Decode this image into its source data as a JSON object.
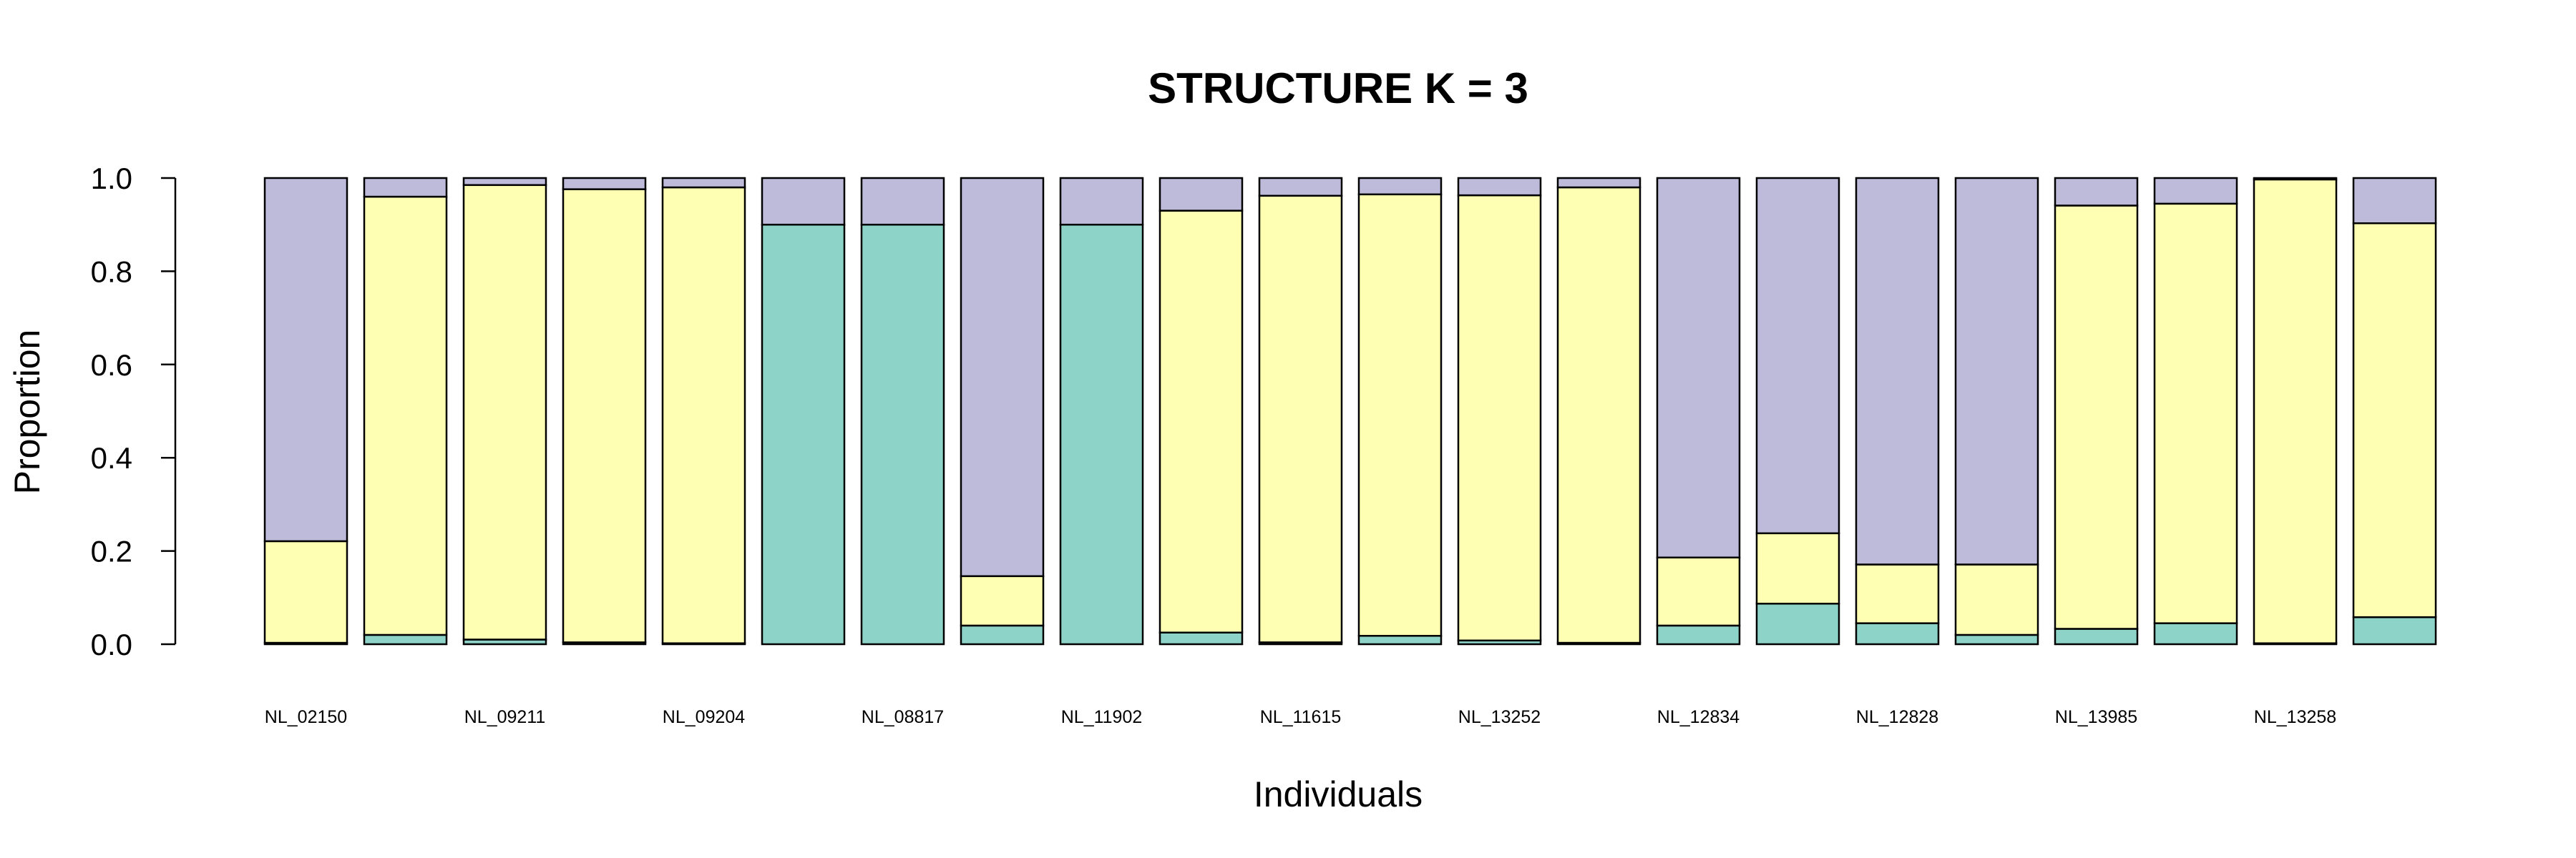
{
  "chart_data": {
    "type": "bar",
    "stacked": true,
    "title": "STRUCTURE  K = 3",
    "xlabel": "Individuals",
    "ylabel": "Proportion",
    "ylim": [
      0,
      1
    ],
    "yticks": [
      "0.0",
      "0.2",
      "0.4",
      "0.6",
      "0.8",
      "1.0"
    ],
    "x_tick_labels": [
      "NL_02150",
      "NL_09211",
      "NL_09204",
      "NL_08817",
      "NL_11902",
      "NL_11615",
      "NL_13252",
      "NL_12834",
      "NL_12828",
      "NL_13985",
      "NL_13258"
    ],
    "series": [
      {
        "color": "#8DD3C7",
        "values": [
          0.003,
          0.02,
          0.01,
          0.004,
          0.002,
          0.9,
          0.9,
          0.04,
          0.9,
          0.025,
          0.004,
          0.018,
          0.008,
          0.003,
          0.04,
          0.087,
          0.045,
          0.02,
          0.033,
          0.045,
          0.002,
          0.058
        ]
      },
      {
        "color": "#FFFFB3",
        "values": [
          0.218,
          0.94,
          0.975,
          0.972,
          0.978,
          0.0,
          0.0,
          0.106,
          0.0,
          0.905,
          0.958,
          0.947,
          0.955,
          0.977,
          0.146,
          0.151,
          0.126,
          0.151,
          0.908,
          0.9,
          0.995,
          0.845
        ]
      },
      {
        "color": "#BEBADA",
        "values": [
          0.779,
          0.04,
          0.015,
          0.024,
          0.02,
          0.1,
          0.1,
          0.854,
          0.1,
          0.07,
          0.038,
          0.035,
          0.037,
          0.02,
          0.814,
          0.762,
          0.829,
          0.829,
          0.059,
          0.055,
          0.003,
          0.097
        ]
      }
    ]
  }
}
